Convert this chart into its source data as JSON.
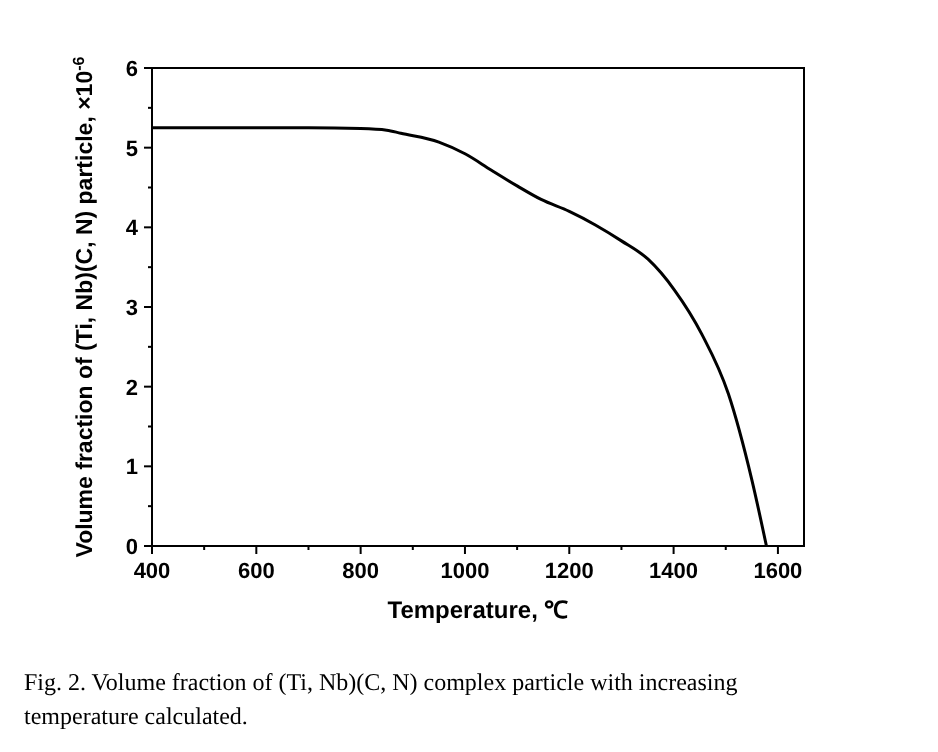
{
  "chart_data": {
    "type": "line",
    "xlabel": "Temperature, ℃",
    "ylabel": "Volume fraction of (Ti, Nb)(C, N) particle, ×10$^{-6}$",
    "x": [
      400,
      500,
      600,
      700,
      800,
      850,
      877,
      950,
      1001,
      1050,
      1100,
      1146,
      1200,
      1250,
      1300,
      1351,
      1402,
      1454,
      1505,
      1550,
      1578
    ],
    "series": [
      {
        "color": "#000000",
        "values": [
          5.25,
          5.25,
          5.25,
          5.25,
          5.24,
          5.22,
          5.18,
          5.07,
          4.92,
          4.72,
          4.52,
          4.35,
          4.2,
          4.03,
          3.83,
          3.6,
          3.21,
          2.66,
          1.91,
          0.83,
          0
        ]
      }
    ],
    "xlim": [
      400,
      1650
    ],
    "xticks": [
      400,
      600,
      800,
      1000,
      1200,
      1400,
      1600
    ],
    "ylim": [
      0,
      6
    ],
    "yticks": [
      0,
      1,
      2,
      3,
      4,
      5,
      6
    ],
    "grid": false,
    "marker": "none",
    "line_style": "solid",
    "annotations": [
      "Fig. 2.  Volume fraction of (Ti, Nb)(C, N) complex particle with increasing temperature calculated."
    ]
  }
}
